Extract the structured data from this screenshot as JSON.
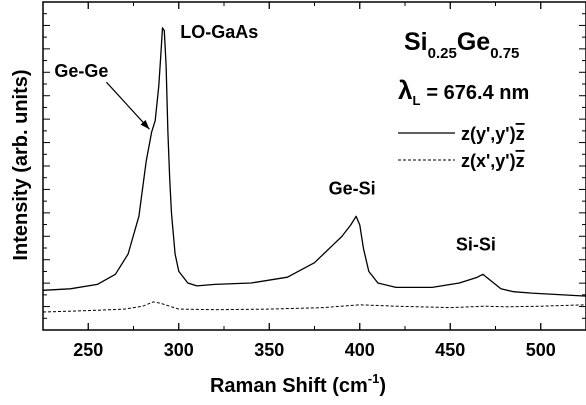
{
  "chart_data": {
    "type": "line",
    "title": "",
    "xlabel": "Raman Shift (cm",
    "xlabel_sup": "-1",
    "xlabel_close": ")",
    "ylabel": "Intensity (arb. units)",
    "xlim": [
      225,
      525
    ],
    "ylim": [
      0,
      1.0
    ],
    "y_tick_labels_shown": false,
    "grid": false,
    "x_ticks": [
      250,
      300,
      350,
      400,
      450,
      500
    ],
    "x_tick_labels": [
      "250",
      "300",
      "350",
      "400",
      "450",
      "500"
    ],
    "composition": {
      "si": "Si",
      "si_sub": "0.25",
      "ge": "Ge",
      "ge_sub": "0.75"
    },
    "laser": {
      "symbol": "λ",
      "sub": "L",
      "value": "= 676.4 nm"
    },
    "legend_position": "right",
    "series": [
      {
        "name": "z(y',y')z̄",
        "legend_main": "z(y',y')",
        "legend_bar": "z",
        "style": "solid",
        "x": [
          225,
          240,
          255,
          265,
          272,
          278,
          282,
          285,
          287,
          289,
          290,
          291,
          292,
          293,
          294,
          295,
          296,
          298,
          300,
          305,
          310,
          320,
          340,
          360,
          375,
          385,
          390,
          395,
          398,
          400,
          402,
          405,
          410,
          420,
          440,
          455,
          460,
          465,
          468,
          472,
          478,
          485,
          495,
          510,
          525
        ],
        "y": [
          0.075,
          0.08,
          0.095,
          0.13,
          0.2,
          0.33,
          0.52,
          0.62,
          0.66,
          0.78,
          0.88,
          0.98,
          0.97,
          0.85,
          0.62,
          0.46,
          0.34,
          0.2,
          0.14,
          0.1,
          0.09,
          0.095,
          0.1,
          0.12,
          0.17,
          0.23,
          0.26,
          0.3,
          0.33,
          0.3,
          0.22,
          0.14,
          0.1,
          0.085,
          0.085,
          0.1,
          0.11,
          0.12,
          0.13,
          0.11,
          0.08,
          0.07,
          0.065,
          0.06,
          0.055
        ]
      },
      {
        "name": "z(x',y')z̄",
        "legend_main": "z(x',y')",
        "legend_bar": "z",
        "style": "dashed",
        "x": [
          225,
          250,
          270,
          280,
          286,
          290,
          295,
          300,
          320,
          350,
          380,
          400,
          420,
          450,
          470,
          480,
          500,
          525
        ],
        "y": [
          0.0,
          0.005,
          0.01,
          0.02,
          0.035,
          0.03,
          0.02,
          0.01,
          0.008,
          0.01,
          0.015,
          0.025,
          0.02,
          0.015,
          0.02,
          0.018,
          0.02,
          0.025
        ]
      }
    ],
    "annotations": [
      {
        "text": "LO-GaAs",
        "x": 292,
        "y": 0.98
      },
      {
        "text": "Ge-Ge",
        "x": 286,
        "y": 0.62
      },
      {
        "text": "Ge-Si",
        "x": 398,
        "y": 0.33
      },
      {
        "text": "Si-Si",
        "x": 468,
        "y": 0.13
      }
    ]
  }
}
